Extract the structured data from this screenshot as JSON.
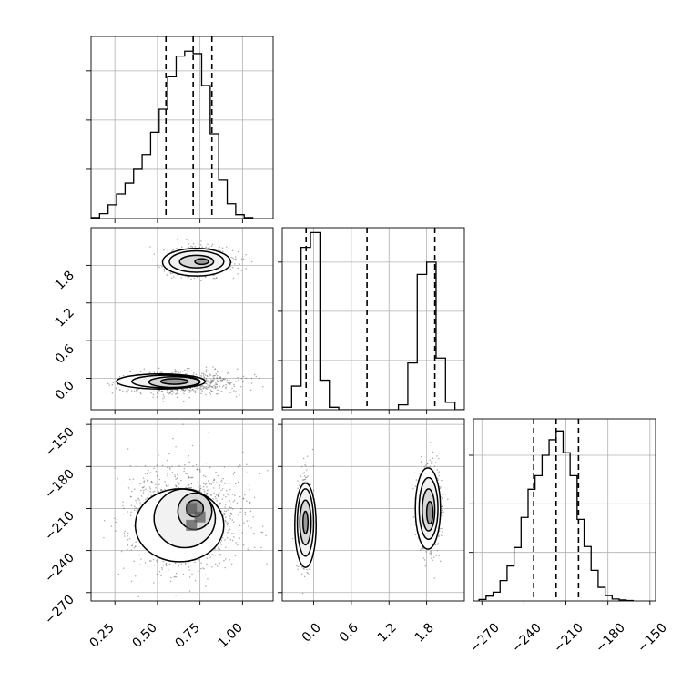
{
  "chart_data": {
    "type": "corner",
    "grid": true,
    "parameters": [
      {
        "ticks": [
          0.25,
          0.5,
          0.75,
          1.0
        ],
        "tick_labels": [
          "0.25",
          "0.50",
          "0.75",
          "1.00"
        ],
        "range": [
          0.11,
          1.18
        ],
        "hist_y_ticks": [
          1,
          2,
          3
        ],
        "hist": {
          "edges": [
            0.11,
            0.16,
            0.21,
            0.26,
            0.31,
            0.36,
            0.41,
            0.46,
            0.51,
            0.56,
            0.61,
            0.66,
            0.71,
            0.76,
            0.81,
            0.86,
            0.91,
            0.96,
            1.01,
            1.06
          ],
          "counts": [
            0.02,
            0.1,
            0.28,
            0.5,
            0.72,
            1.0,
            1.3,
            1.75,
            2.22,
            2.88,
            3.3,
            3.4,
            3.35,
            2.7,
            1.72,
            0.78,
            0.3,
            0.08,
            0.02
          ],
          "ymax": 3.7
        },
        "quantiles": [
          0.55,
          0.71,
          0.82
        ]
      },
      {
        "ticks": [
          0.0,
          0.6,
          1.2,
          1.8
        ],
        "tick_labels": [
          "0.0",
          "0.6",
          "1.2",
          "1.8"
        ],
        "range": [
          -0.5,
          2.4
        ],
        "hist_y_ticks": [
          1,
          2,
          3
        ],
        "hist": {
          "edges": [
            -0.5,
            -0.35,
            -0.2,
            -0.05,
            0.1,
            0.25,
            0.4,
            1.35,
            1.5,
            1.65,
            1.8,
            1.95,
            2.1,
            2.25,
            2.4
          ],
          "counts": [
            0.05,
            0.48,
            3.3,
            3.6,
            0.6,
            0.05,
            0,
            0.1,
            0.95,
            2.75,
            3.0,
            1.05,
            0.15,
            0
          ],
          "ymax": 3.7
        },
        "quantiles": [
          -0.12,
          0.85,
          1.93
        ]
      },
      {
        "ticks": [
          -270,
          -240,
          -210,
          -180,
          -150
        ],
        "tick_labels": [
          "−270",
          "−240",
          "−210",
          "−180",
          "−150"
        ],
        "range": [
          -276,
          -146
        ],
        "hist_y_ticks": [
          1,
          2,
          3
        ],
        "hist": {
          "edges": [
            -272,
            -267,
            -262,
            -257,
            -252,
            -247,
            -242,
            -237,
            -232,
            -227,
            -222,
            -217,
            -212,
            -207,
            -202,
            -197,
            -192,
            -187,
            -182,
            -177,
            -172,
            -167,
            -162
          ],
          "counts": [
            0.03,
            0.1,
            0.18,
            0.42,
            0.72,
            1.1,
            1.72,
            2.3,
            2.58,
            3.0,
            3.32,
            3.5,
            3.05,
            2.58,
            1.68,
            1.12,
            0.63,
            0.28,
            0.11,
            0.04,
            0.02,
            0.01
          ],
          "ymax": 3.75
        },
        "quantiles": [
          -233,
          -217,
          -201
        ]
      }
    ],
    "scatter_panels": [
      {
        "id": "p1-p0",
        "xparam": 0,
        "yparam": 1,
        "modes": [
          {
            "cx": 0.75,
            "cy": 1.85,
            "sx": 0.085,
            "sy": 0.1,
            "weight": 0.5
          },
          {
            "cx": 0.62,
            "cy": -0.07,
            "sx": 0.15,
            "sy": 0.08,
            "weight": 0.5
          }
        ],
        "contours": [
          [
            [
              0.76,
              1.86,
              0.04,
              0.045
            ],
            [
              0.73,
              1.86,
              0.1,
              0.1
            ],
            [
              0.73,
              1.86,
              0.16,
              0.17
            ],
            [
              0.73,
              1.85,
              0.2,
              0.22
            ]
          ],
          [
            [
              0.6,
              -0.05,
              0.08,
              0.045
            ],
            [
              0.6,
              -0.06,
              0.15,
              0.085
            ],
            [
              0.55,
              -0.05,
              0.2,
              0.1
            ],
            [
              0.52,
              -0.05,
              0.26,
              0.12
            ]
          ]
        ]
      },
      {
        "id": "p2-p0",
        "xparam": 0,
        "yparam": 2,
        "modes": [
          {
            "cx": 0.66,
            "cy": -217,
            "sx": 0.14,
            "sy": 15,
            "weight": 1.0
          }
        ],
        "contours": [
          [
            [
              0.72,
              -210,
              0.05,
              6
            ],
            [
              0.72,
              -212,
              0.1,
              13
            ],
            [
              0.66,
              -217,
              0.18,
              21
            ],
            [
              0.63,
              -222,
              0.26,
              26
            ]
          ]
        ],
        "dark_cells": [
          [
            0.7,
            -222
          ],
          [
            0.7,
            -210
          ],
          [
            0.75,
            -216
          ]
        ]
      },
      {
        "id": "p2-p1",
        "xparam": 1,
        "yparam": 2,
        "modes": [
          {
            "cx": -0.13,
            "cy": -220,
            "sx": 0.05,
            "sy": 14,
            "weight": 0.5
          },
          {
            "cx": 1.85,
            "cy": -210,
            "sx": 0.08,
            "sy": 13,
            "weight": 0.5
          }
        ],
        "contours": [
          [
            [
              -0.13,
              -220,
              0.04,
              8
            ],
            [
              -0.13,
              -220,
              0.09,
              16
            ],
            [
              -0.13,
              -220,
              0.13,
              24
            ],
            [
              -0.13,
              -222,
              0.17,
              30
            ]
          ],
          [
            [
              1.85,
              -213,
              0.05,
              8
            ],
            [
              1.83,
              -211,
              0.1,
              15
            ],
            [
              1.83,
              -210,
              0.15,
              22
            ],
            [
              1.82,
              -210,
              0.2,
              29
            ]
          ]
        ]
      }
    ]
  }
}
